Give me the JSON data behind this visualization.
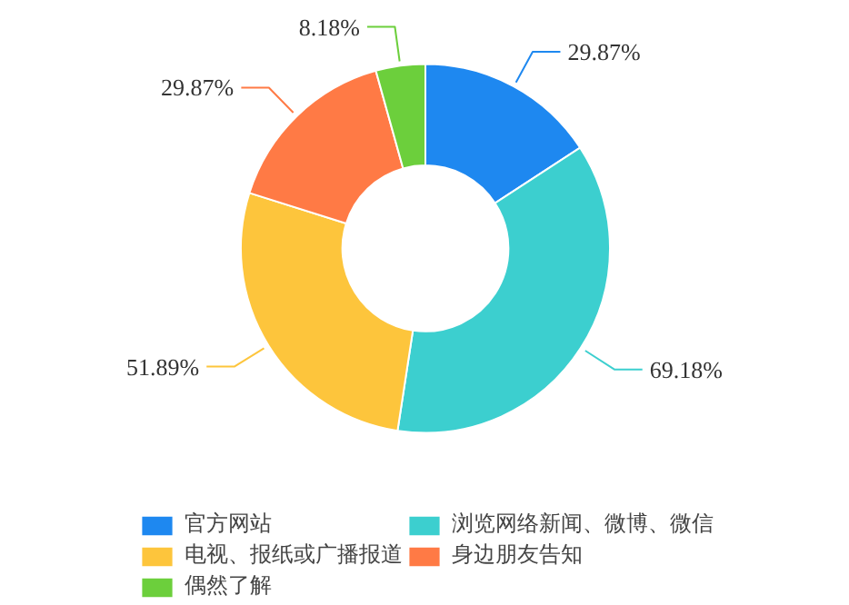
{
  "chart_data": {
    "type": "donut",
    "categories": [
      "官方网站",
      "浏览网络新闻、微博、微信",
      "电视、报纸或广播报道",
      "身边朋友告知",
      "偶然了解"
    ],
    "values": [
      29.87,
      69.18,
      51.89,
      29.87,
      8.18
    ],
    "colors": [
      "#1e88f0",
      "#3ccfcf",
      "#fdc53c",
      "#ff7a45",
      "#6ccf3c"
    ],
    "value_labels": [
      "29.87%",
      "69.18%",
      "51.89%",
      "29.87%",
      "8.18%"
    ],
    "legend": "bottom"
  }
}
